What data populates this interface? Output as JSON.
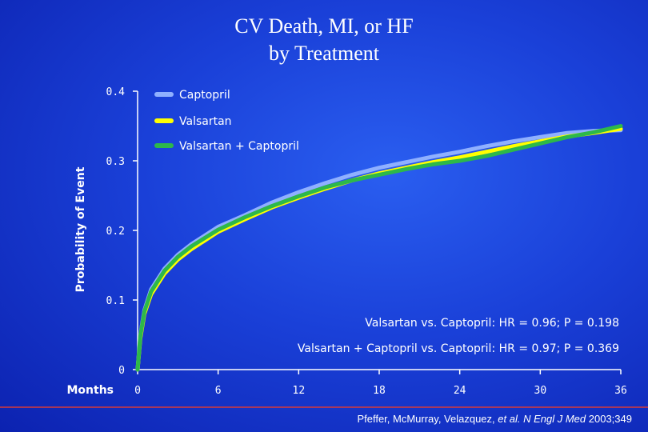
{
  "chart_data": {
    "type": "line",
    "title": "CV Death, MI, or HF",
    "subtitle": "by Treatment",
    "ylabel": "Probability of Event",
    "xlabel": "Months",
    "xlim": [
      0,
      36
    ],
    "ylim": [
      0,
      0.4
    ],
    "xticks": [
      "0",
      "6",
      "12",
      "18",
      "24",
      "30",
      "36"
    ],
    "yticks": [
      "0",
      "0.1",
      "0.2",
      "0.3",
      "0.4"
    ],
    "legend_position": "top-left",
    "series": [
      {
        "name": "Captopril",
        "color": "#8fb0ff",
        "x": [
          0,
          0.2,
          0.5,
          1,
          2,
          3,
          4,
          6,
          8,
          10,
          12,
          14,
          16,
          18,
          20,
          22,
          24,
          26,
          28,
          30,
          32,
          34,
          36
        ],
        "y": [
          0,
          0.05,
          0.085,
          0.115,
          0.145,
          0.165,
          0.18,
          0.205,
          0.222,
          0.24,
          0.255,
          0.268,
          0.28,
          0.29,
          0.298,
          0.306,
          0.313,
          0.321,
          0.328,
          0.334,
          0.34,
          0.343,
          0.344
        ]
      },
      {
        "name": "Valsartan",
        "color": "#ffff00",
        "x": [
          0,
          0.2,
          0.5,
          1,
          2,
          3,
          4,
          6,
          8,
          10,
          12,
          14,
          16,
          18,
          20,
          22,
          24,
          26,
          28,
          30,
          32,
          34,
          36
        ],
        "y": [
          0,
          0.045,
          0.08,
          0.108,
          0.138,
          0.158,
          0.173,
          0.198,
          0.216,
          0.233,
          0.247,
          0.26,
          0.272,
          0.282,
          0.29,
          0.298,
          0.305,
          0.313,
          0.321,
          0.328,
          0.335,
          0.34,
          0.346
        ]
      },
      {
        "name": "Valsartan + Captopril",
        "color": "#2db84a",
        "x": [
          0,
          0.2,
          0.5,
          1,
          2,
          3,
          4,
          6,
          8,
          10,
          12,
          14,
          16,
          18,
          20,
          22,
          24,
          26,
          28,
          30,
          32,
          34,
          36
        ],
        "y": [
          0,
          0.048,
          0.083,
          0.112,
          0.142,
          0.162,
          0.177,
          0.201,
          0.219,
          0.235,
          0.249,
          0.262,
          0.272,
          0.28,
          0.288,
          0.295,
          0.3,
          0.307,
          0.316,
          0.325,
          0.334,
          0.341,
          0.35
        ]
      }
    ],
    "annotations": [
      "Valsartan vs. Captopril: HR = 0.96; P = 0.198",
      "Valsartan + Captopril vs. Captopril: HR = 0.97; P = 0.369"
    ]
  },
  "citation": {
    "authors": "Pfeffer, McMurray, Velazquez,",
    "etal": "et al.",
    "journal": "N Engl J Med",
    "ref": "2003;349"
  },
  "colors": {
    "axis": "#ffffff",
    "text": "#ffffff",
    "background": "#1a40d8"
  }
}
